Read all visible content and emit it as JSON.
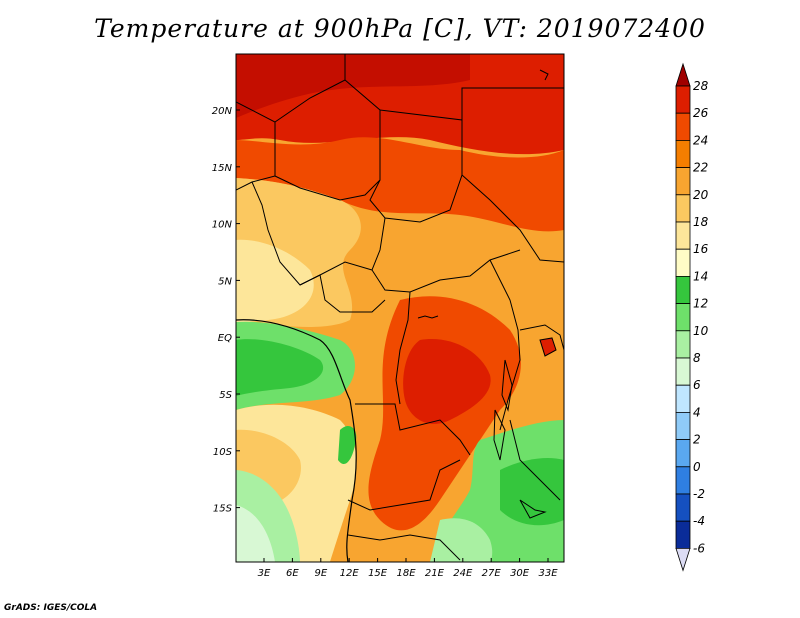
{
  "title": "Temperature at 900hPa [C], VT: 2019072400",
  "footer": "GrADS: IGES/COLA",
  "map": {
    "lat_labels": [
      "20N",
      "15N",
      "10N",
      "5N",
      "EQ",
      "5S",
      "10S",
      "15S"
    ],
    "lon_labels": [
      "3E",
      "6E",
      "9E",
      "12E",
      "15E",
      "18E",
      "21E",
      "24E",
      "27E",
      "30E",
      "33E"
    ]
  },
  "colorbar": {
    "labels": [
      "28",
      "26",
      "24",
      "22",
      "20",
      "18",
      "16",
      "14",
      "12",
      "10",
      "8",
      "6",
      "4",
      "2",
      "0",
      "-2",
      "-4",
      "-6"
    ],
    "colors": [
      "#a00000",
      "#dd1e00",
      "#f04a00",
      "#f57e00",
      "#f8a530",
      "#fbc860",
      "#fde69a",
      "#fffcc6",
      "#35c63d",
      "#6ee06a",
      "#a9f0a2",
      "#d8f8d4",
      "#bfe6ff",
      "#8fcbf8",
      "#5aa8f0",
      "#2f7fe2",
      "#1550c0",
      "#0a2c99",
      "#05106a",
      "#dcdcf4"
    ]
  }
}
